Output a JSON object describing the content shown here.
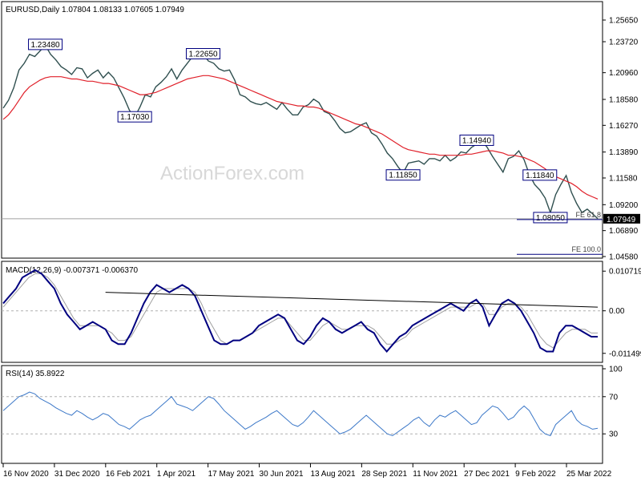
{
  "chart_data": {
    "type": "line",
    "symbol": "EURUSD",
    "timeframe": "Daily",
    "ohlc": {
      "open": "1.07804",
      "high": "1.08133",
      "low": "1.07605",
      "close": "1.07949"
    },
    "header_text": "EURUSD,Daily  1.07804 1.08133 1.07605 1.07949",
    "watermark": "ActionForex.com",
    "colors": {
      "price": "#2f4f4f",
      "ma": "#e0202a",
      "macd": "#000080",
      "signal": "#a0a0a0",
      "rsi": "#3c78c8",
      "trendline": "#000000",
      "fe_line": "#000080",
      "box_border": "#000080"
    },
    "x_tick_labels": [
      "16 Nov 2020",
      "31 Dec 2020",
      "16 Feb 2021",
      "1 Apr 2021",
      "17 May 2021",
      "30 Jun 2021",
      "13 Aug 2021",
      "28 Sep 2021",
      "11 Nov 2021",
      "27 Dec 2021",
      "9 Feb 2022",
      "25 Mar 2022"
    ],
    "price_panel": {
      "y_ticks": [
        "1.25650",
        "1.23720",
        "1.20960",
        "1.18580",
        "1.16270",
        "1.13890",
        "1.11580",
        "1.09200",
        "1.06890",
        "1.04580"
      ],
      "ylim": [
        1.0458,
        1.2715
      ],
      "current_price_label": "1.07949",
      "current_price": 1.07949,
      "series": [
        {
          "type": "price",
          "values": [
            1.178,
            1.185,
            1.196,
            1.212,
            1.218,
            1.226,
            1.224,
            1.229,
            1.234,
            1.226,
            1.221,
            1.215,
            1.212,
            1.208,
            1.214,
            1.213,
            1.205,
            1.209,
            1.212,
            1.205,
            1.21,
            1.205,
            1.196,
            1.187,
            1.176,
            1.17,
            1.179,
            1.19,
            1.188,
            1.197,
            1.201,
            1.206,
            1.213,
            1.204,
            1.212,
            1.218,
            1.224,
            1.222,
            1.226,
            1.22,
            1.218,
            1.213,
            1.211,
            1.212,
            1.203,
            1.19,
            1.188,
            1.184,
            1.182,
            1.181,
            1.183,
            1.18,
            1.177,
            1.183,
            1.177,
            1.172,
            1.172,
            1.179,
            1.181,
            1.186,
            1.183,
            1.175,
            1.173,
            1.167,
            1.16,
            1.156,
            1.157,
            1.16,
            1.163,
            1.165,
            1.156,
            1.153,
            1.146,
            1.138,
            1.133,
            1.126,
            1.12,
            1.129,
            1.13,
            1.131,
            1.128,
            1.133,
            1.133,
            1.131,
            1.136,
            1.131,
            1.134,
            1.139,
            1.138,
            1.143,
            1.146,
            1.149,
            1.143,
            1.135,
            1.128,
            1.121,
            1.133,
            1.135,
            1.14,
            1.132,
            1.119,
            1.11,
            1.105,
            1.098,
            1.085,
            1.101,
            1.11,
            1.118,
            1.103,
            1.093,
            1.085,
            1.088,
            1.084,
            1.0795
          ]
        },
        {
          "type": "ma",
          "values": [
            1.168,
            1.172,
            1.178,
            1.185,
            1.192,
            1.197,
            1.2,
            1.203,
            1.205,
            1.206,
            1.206,
            1.206,
            1.205,
            1.204,
            1.204,
            1.203,
            1.202,
            1.202,
            1.201,
            1.2,
            1.2,
            1.199,
            1.198,
            1.196,
            1.194,
            1.192,
            1.19,
            1.19,
            1.191,
            1.192,
            1.194,
            1.196,
            1.198,
            1.2,
            1.202,
            1.204,
            1.205,
            1.206,
            1.207,
            1.207,
            1.206,
            1.205,
            1.204,
            1.202,
            1.2,
            1.198,
            1.196,
            1.194,
            1.192,
            1.19,
            1.188,
            1.186,
            1.184,
            1.183,
            1.182,
            1.181,
            1.18,
            1.18,
            1.179,
            1.179,
            1.178,
            1.176,
            1.174,
            1.172,
            1.17,
            1.168,
            1.166,
            1.164,
            1.163,
            1.161,
            1.159,
            1.157,
            1.155,
            1.152,
            1.149,
            1.146,
            1.143,
            1.141,
            1.14,
            1.139,
            1.138,
            1.137,
            1.137,
            1.136,
            1.136,
            1.136,
            1.136,
            1.136,
            1.137,
            1.137,
            1.138,
            1.139,
            1.14,
            1.14,
            1.139,
            1.138,
            1.136,
            1.136,
            1.135,
            1.134,
            1.132,
            1.13,
            1.127,
            1.124,
            1.12,
            1.117,
            1.115,
            1.113,
            1.111,
            1.108,
            1.104,
            1.101,
            1.099,
            1.097
          ]
        }
      ],
      "annotations": [
        {
          "text": "1.23480",
          "x_index": 8,
          "price": 1.2348
        },
        {
          "text": "1.17030",
          "x_index": 25,
          "price": 1.1703
        },
        {
          "text": "1.22650",
          "x_index": 38,
          "price": 1.2265
        },
        {
          "text": "1.11850",
          "x_index": 76,
          "price": 1.1185
        },
        {
          "text": "1.14940",
          "x_index": 90,
          "price": 1.1494
        },
        {
          "text": "1.11840",
          "x_index": 102,
          "price": 1.1184
        },
        {
          "text": "1.08050",
          "x_index": 104,
          "price": 1.0805
        }
      ],
      "fe_labels": [
        {
          "text": "FE 61.8",
          "price": 1.0795
        },
        {
          "text": "FE 100.0",
          "price": 1.0485
        }
      ]
    },
    "macd_panel": {
      "label": "MACD(12,26,9) -0.007371 -0.006370",
      "y_ticks": [
        "0.010719",
        "0.00",
        "-0.011499"
      ],
      "ylim": [
        -0.0135,
        0.0125
      ],
      "macd": [
        0.002,
        0.004,
        0.006,
        0.009,
        0.01,
        0.011,
        0.01,
        0.008,
        0.006,
        0.002,
        -0.001,
        -0.003,
        -0.005,
        -0.004,
        -0.003,
        -0.004,
        -0.005,
        -0.008,
        -0.009,
        -0.009,
        -0.006,
        -0.002,
        0.002,
        0.005,
        0.007,
        0.006,
        0.005,
        0.006,
        0.007,
        0.006,
        0.004,
        0.0,
        -0.004,
        -0.008,
        -0.009,
        -0.009,
        -0.008,
        -0.008,
        -0.007,
        -0.006,
        -0.004,
        -0.003,
        -0.002,
        -0.001,
        -0.002,
        -0.005,
        -0.008,
        -0.009,
        -0.007,
        -0.004,
        -0.002,
        -0.003,
        -0.005,
        -0.006,
        -0.005,
        -0.004,
        -0.003,
        -0.005,
        -0.006,
        -0.009,
        -0.011,
        -0.009,
        -0.007,
        -0.006,
        -0.004,
        -0.003,
        -0.002,
        -0.001,
        0.0,
        0.001,
        0.002,
        0.001,
        0.0,
        0.002,
        0.003,
        0.001,
        -0.004,
        -0.001,
        0.002,
        0.003,
        0.002,
        0.0,
        -0.003,
        -0.006,
        -0.01,
        -0.011,
        -0.011,
        -0.006,
        -0.004,
        -0.004,
        -0.005,
        -0.006,
        -0.007,
        -0.007
      ],
      "signal": [
        0.001,
        0.003,
        0.005,
        0.007,
        0.009,
        0.01,
        0.01,
        0.009,
        0.007,
        0.004,
        0.001,
        -0.002,
        -0.004,
        -0.004,
        -0.004,
        -0.004,
        -0.005,
        -0.006,
        -0.008,
        -0.008,
        -0.007,
        -0.004,
        -0.001,
        0.002,
        0.005,
        0.006,
        0.006,
        0.006,
        0.006,
        0.006,
        0.005,
        0.002,
        -0.002,
        -0.005,
        -0.008,
        -0.009,
        -0.008,
        -0.008,
        -0.007,
        -0.006,
        -0.005,
        -0.004,
        -0.003,
        -0.002,
        -0.002,
        -0.004,
        -0.006,
        -0.008,
        -0.008,
        -0.006,
        -0.004,
        -0.003,
        -0.004,
        -0.005,
        -0.005,
        -0.004,
        -0.004,
        -0.004,
        -0.005,
        -0.007,
        -0.009,
        -0.009,
        -0.008,
        -0.007,
        -0.005,
        -0.004,
        -0.003,
        -0.002,
        -0.001,
        0.0,
        0.001,
        0.001,
        0.001,
        0.001,
        0.002,
        0.002,
        -0.001,
        -0.001,
        0.001,
        0.002,
        0.002,
        0.001,
        -0.001,
        -0.004,
        -0.007,
        -0.009,
        -0.01,
        -0.008,
        -0.006,
        -0.005,
        -0.005,
        -0.005,
        -0.006,
        -0.006
      ],
      "trendline": [
        {
          "x_index": 16,
          "value": 0.005
        },
        {
          "x_index": 93,
          "value": 0.001
        }
      ]
    },
    "rsi_panel": {
      "label": "RSI(14) 35.8922",
      "y_ticks": [
        "100",
        "70",
        "30"
      ],
      "ylim": [
        0,
        100
      ],
      "levels": [
        70,
        30
      ],
      "values": [
        55,
        60,
        65,
        70,
        72,
        75,
        73,
        68,
        65,
        62,
        58,
        55,
        52,
        50,
        55,
        52,
        48,
        45,
        48,
        52,
        50,
        45,
        40,
        38,
        35,
        40,
        45,
        48,
        50,
        55,
        60,
        65,
        70,
        62,
        60,
        58,
        55,
        60,
        65,
        70,
        68,
        62,
        55,
        50,
        45,
        40,
        35,
        38,
        42,
        45,
        48,
        52,
        55,
        50,
        45,
        40,
        38,
        42,
        48,
        55,
        50,
        45,
        40,
        35,
        30,
        32,
        35,
        40,
        45,
        50,
        45,
        40,
        35,
        30,
        28,
        32,
        36,
        40,
        45,
        48,
        42,
        38,
        45,
        50,
        48,
        52,
        55,
        50,
        45,
        40,
        42,
        50,
        55,
        60,
        58,
        52,
        45,
        48,
        55,
        60,
        55,
        45,
        35,
        30,
        28,
        40,
        45,
        50,
        55,
        45,
        40,
        38,
        35,
        36
      ]
    }
  }
}
